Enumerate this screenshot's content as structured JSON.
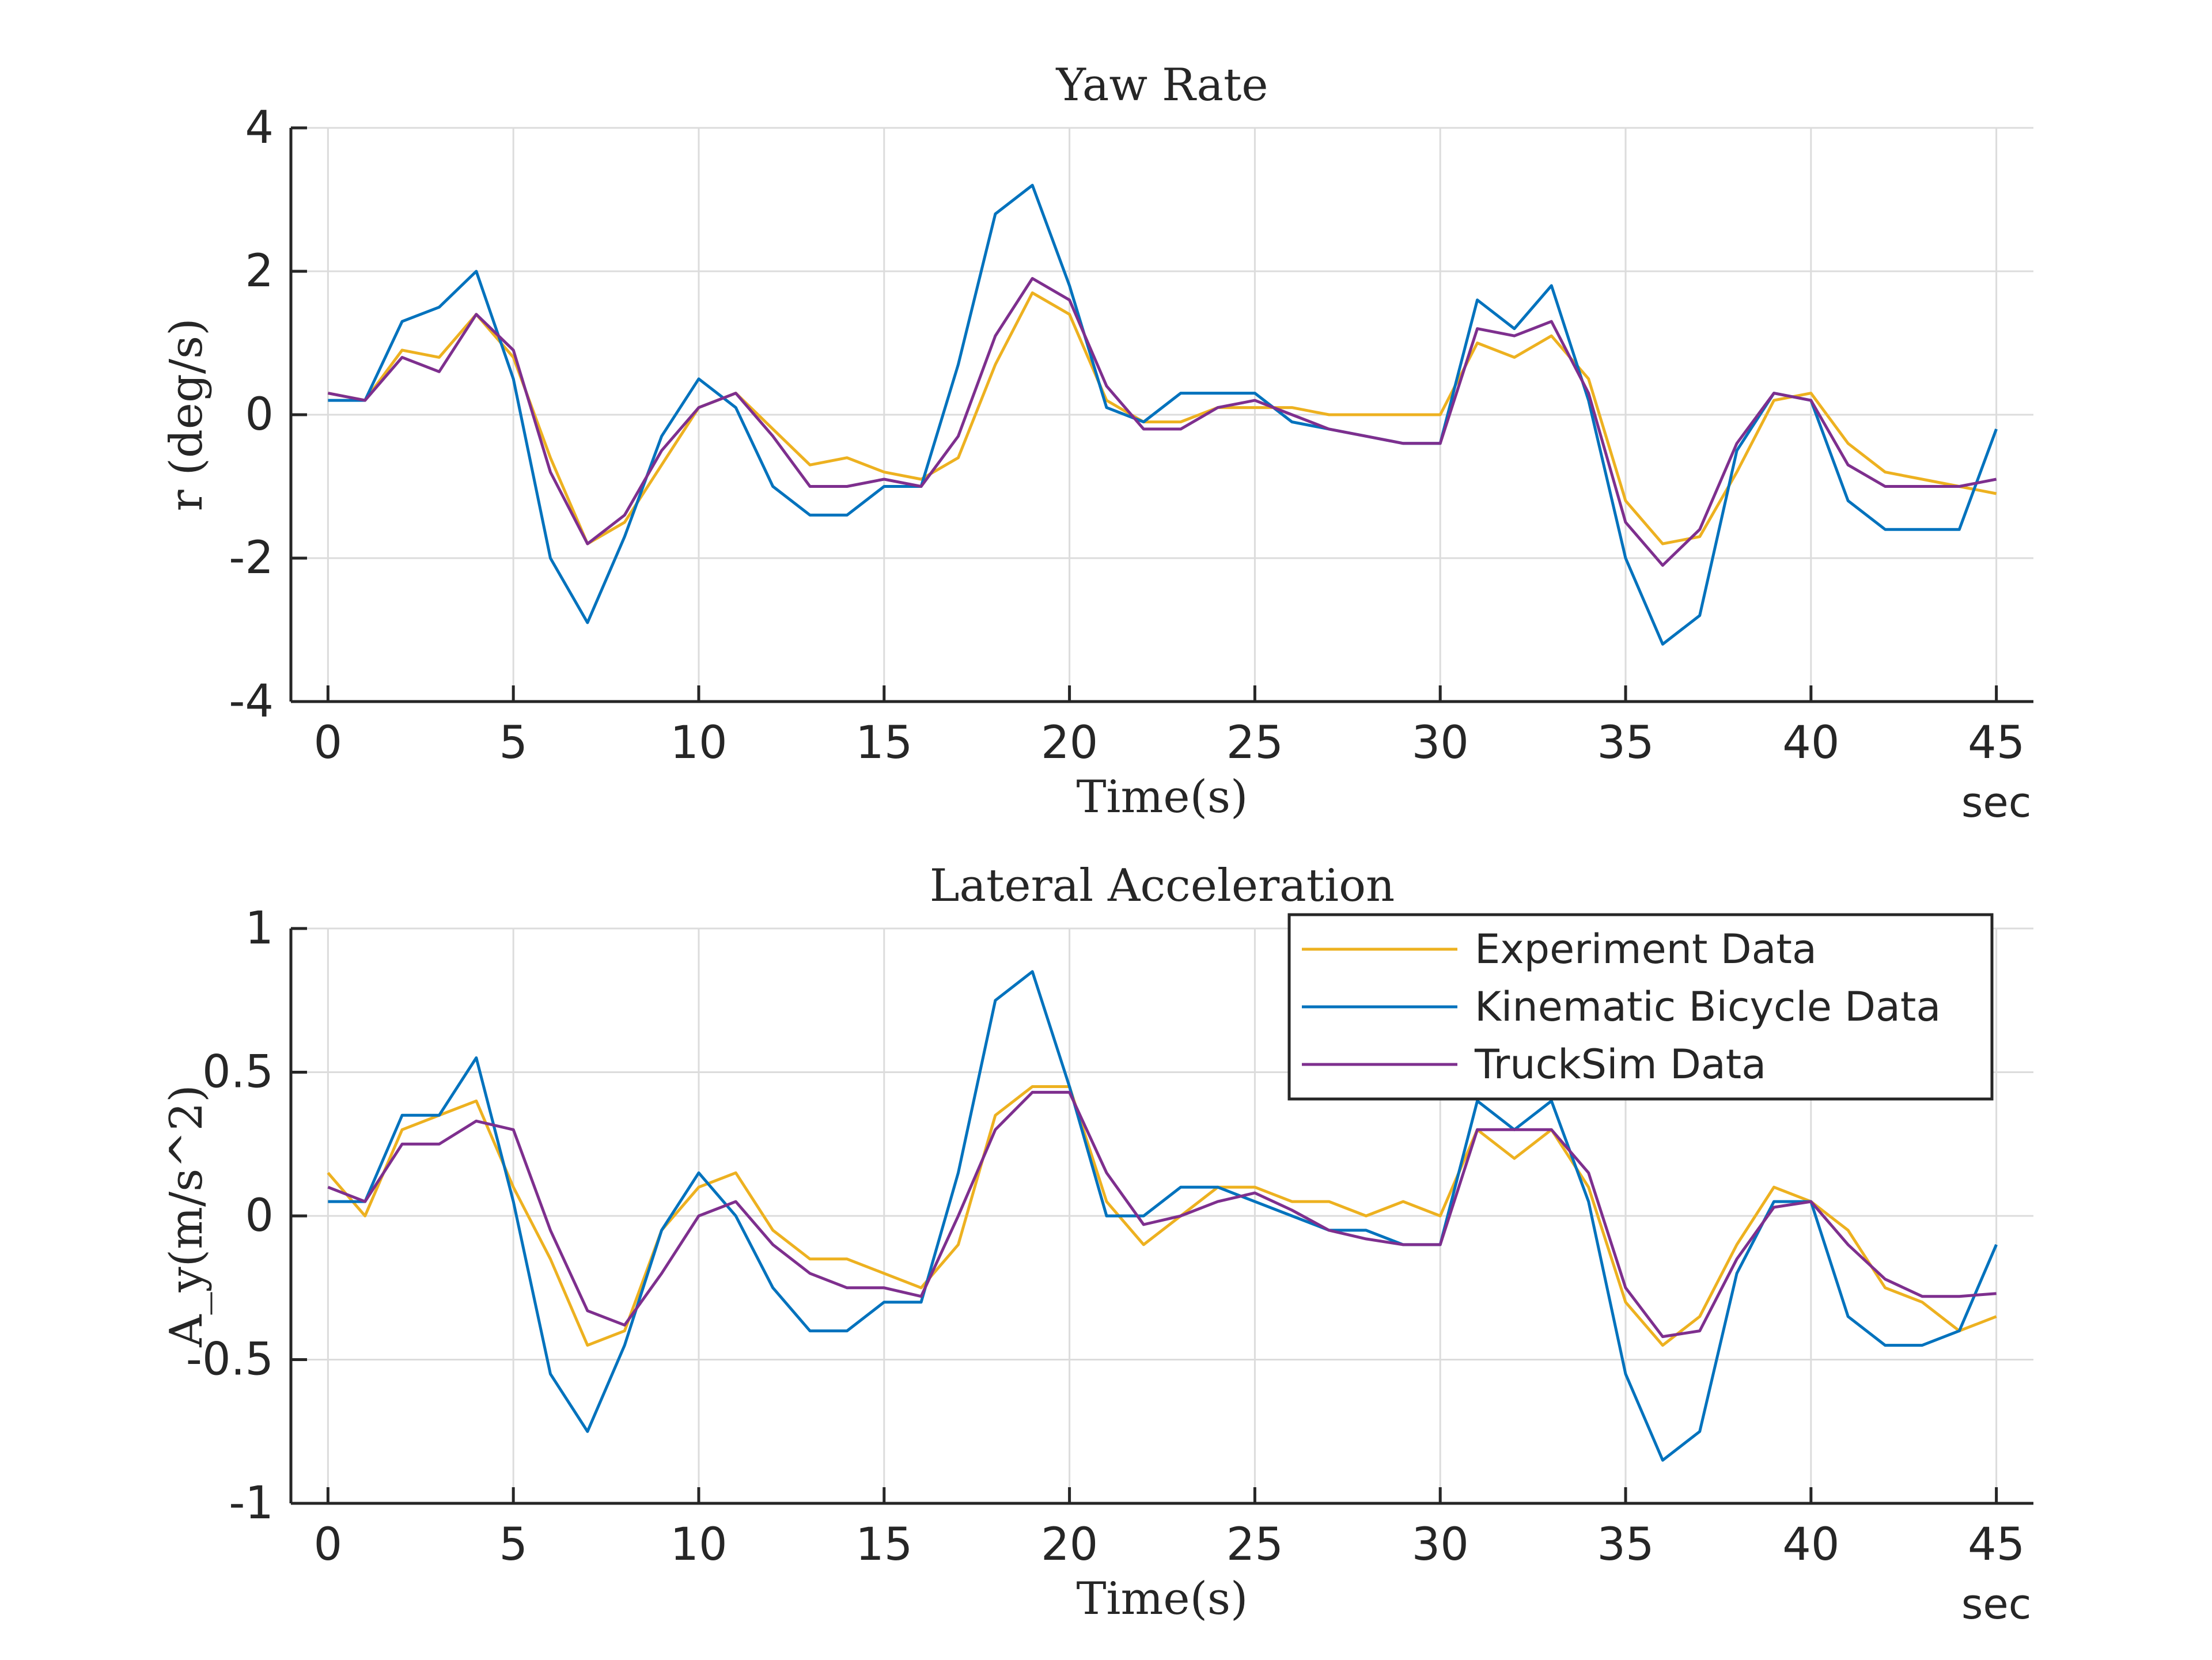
{
  "chart_data": [
    {
      "type": "line",
      "title": "Yaw Rate",
      "xlabel": "Time(s)",
      "ylabel": "r (deg/s)",
      "x_unit_label": "sec",
      "xlim": [
        -1,
        46
      ],
      "ylim": [
        -4,
        4
      ],
      "xticks": [
        0,
        5,
        10,
        15,
        20,
        25,
        30,
        35,
        40,
        45
      ],
      "yticks": [
        -4,
        -2,
        0,
        2,
        4
      ],
      "grid": true,
      "x": [
        0,
        1,
        2,
        3,
        4,
        5,
        6,
        7,
        8,
        9,
        10,
        11,
        12,
        13,
        14,
        15,
        16,
        17,
        18,
        19,
        20,
        21,
        22,
        23,
        24,
        25,
        26,
        27,
        28,
        29,
        30,
        31,
        32,
        33,
        34,
        35,
        36,
        37,
        38,
        39,
        40,
        41,
        42,
        43,
        44,
        45
      ],
      "series": [
        {
          "name": "Experiment Data",
          "color": "#EDB120",
          "values": [
            0.3,
            0.2,
            0.9,
            0.8,
            1.4,
            0.8,
            -0.6,
            -1.8,
            -1.5,
            -0.7,
            0.1,
            0.3,
            -0.2,
            -0.7,
            -0.6,
            -0.8,
            -0.9,
            -0.6,
            0.7,
            1.7,
            1.4,
            0.2,
            -0.1,
            -0.1,
            0.1,
            0.1,
            0.1,
            0.0,
            0.0,
            0.0,
            0.0,
            1.0,
            0.8,
            1.1,
            0.5,
            -1.2,
            -1.8,
            -1.7,
            -0.8,
            0.2,
            0.3,
            -0.4,
            -0.8,
            -0.9,
            -1.0,
            -1.1
          ]
        },
        {
          "name": "Kinematic Bicycle Data",
          "color": "#0072BD",
          "values": [
            0.2,
            0.2,
            1.3,
            1.5,
            2.0,
            0.5,
            -2.0,
            -2.9,
            -1.7,
            -0.3,
            0.5,
            0.1,
            -1.0,
            -1.4,
            -1.4,
            -1.0,
            -1.0,
            0.7,
            2.8,
            3.2,
            1.8,
            0.1,
            -0.1,
            0.3,
            0.3,
            0.3,
            -0.1,
            -0.2,
            -0.3,
            -0.4,
            -0.4,
            1.6,
            1.2,
            1.8,
            0.2,
            -2.0,
            -3.2,
            -2.8,
            -0.5,
            0.3,
            0.2,
            -1.2,
            -1.6,
            -1.6,
            -1.6,
            -0.2
          ]
        },
        {
          "name": "TruckSim Data",
          "color": "#7E2F8E",
          "values": [
            0.3,
            0.2,
            0.8,
            0.6,
            1.4,
            0.9,
            -0.8,
            -1.8,
            -1.4,
            -0.5,
            0.1,
            0.3,
            -0.3,
            -1.0,
            -1.0,
            -0.9,
            -1.0,
            -0.3,
            1.1,
            1.9,
            1.6,
            0.4,
            -0.2,
            -0.2,
            0.1,
            0.2,
            0.0,
            -0.2,
            -0.3,
            -0.4,
            -0.4,
            1.2,
            1.1,
            1.3,
            0.3,
            -1.5,
            -2.1,
            -1.6,
            -0.4,
            0.3,
            0.2,
            -0.7,
            -1.0,
            -1.0,
            -1.0,
            -0.9
          ]
        }
      ]
    },
    {
      "type": "line",
      "title": "Lateral Acceleration",
      "xlabel": "Time(s)",
      "ylabel": "A_y(m/s^2)",
      "x_unit_label": "sec",
      "xlim": [
        -1,
        46
      ],
      "ylim": [
        -1,
        1
      ],
      "xticks": [
        0,
        5,
        10,
        15,
        20,
        25,
        30,
        35,
        40,
        45
      ],
      "yticks": [
        -1,
        -0.5,
        0,
        0.5,
        1
      ],
      "grid": true,
      "legend_position": "top-right",
      "x": [
        0,
        1,
        2,
        3,
        4,
        5,
        6,
        7,
        8,
        9,
        10,
        11,
        12,
        13,
        14,
        15,
        16,
        17,
        18,
        19,
        20,
        21,
        22,
        23,
        24,
        25,
        26,
        27,
        28,
        29,
        30,
        31,
        32,
        33,
        34,
        35,
        36,
        37,
        38,
        39,
        40,
        41,
        42,
        43,
        44,
        45
      ],
      "series": [
        {
          "name": "Experiment Data",
          "color": "#EDB120",
          "values": [
            0.15,
            0.0,
            0.3,
            0.35,
            0.4,
            0.1,
            -0.15,
            -0.45,
            -0.4,
            -0.05,
            0.1,
            0.15,
            -0.05,
            -0.15,
            -0.15,
            -0.2,
            -0.25,
            -0.1,
            0.35,
            0.45,
            0.45,
            0.05,
            -0.1,
            0.0,
            0.1,
            0.1,
            0.05,
            0.05,
            0.0,
            0.05,
            0.0,
            0.3,
            0.2,
            0.3,
            0.1,
            -0.3,
            -0.45,
            -0.35,
            -0.1,
            0.1,
            0.05,
            -0.05,
            -0.25,
            -0.3,
            -0.4,
            -0.35
          ]
        },
        {
          "name": "Kinematic Bicycle Data",
          "color": "#0072BD",
          "values": [
            0.05,
            0.05,
            0.35,
            0.35,
            0.55,
            0.05,
            -0.55,
            -0.75,
            -0.45,
            -0.05,
            0.15,
            0.0,
            -0.25,
            -0.4,
            -0.4,
            -0.3,
            -0.3,
            0.15,
            0.75,
            0.85,
            0.45,
            0.0,
            0.0,
            0.1,
            0.1,
            0.05,
            0.0,
            -0.05,
            -0.05,
            -0.1,
            -0.1,
            0.4,
            0.3,
            0.4,
            0.05,
            -0.55,
            -0.85,
            -0.75,
            -0.2,
            0.05,
            0.05,
            -0.35,
            -0.45,
            -0.45,
            -0.4,
            -0.1
          ]
        },
        {
          "name": "TruckSim Data",
          "color": "#7E2F8E",
          "values": [
            0.1,
            0.05,
            0.25,
            0.25,
            0.33,
            0.3,
            -0.05,
            -0.33,
            -0.38,
            -0.2,
            0.0,
            0.05,
            -0.1,
            -0.2,
            -0.25,
            -0.25,
            -0.28,
            0.0,
            0.3,
            0.43,
            0.43,
            0.15,
            -0.03,
            0.0,
            0.05,
            0.08,
            0.02,
            -0.05,
            -0.08,
            -0.1,
            -0.1,
            0.3,
            0.3,
            0.3,
            0.15,
            -0.25,
            -0.42,
            -0.4,
            -0.15,
            0.03,
            0.05,
            -0.1,
            -0.22,
            -0.28,
            -0.28,
            -0.27
          ]
        }
      ]
    }
  ]
}
